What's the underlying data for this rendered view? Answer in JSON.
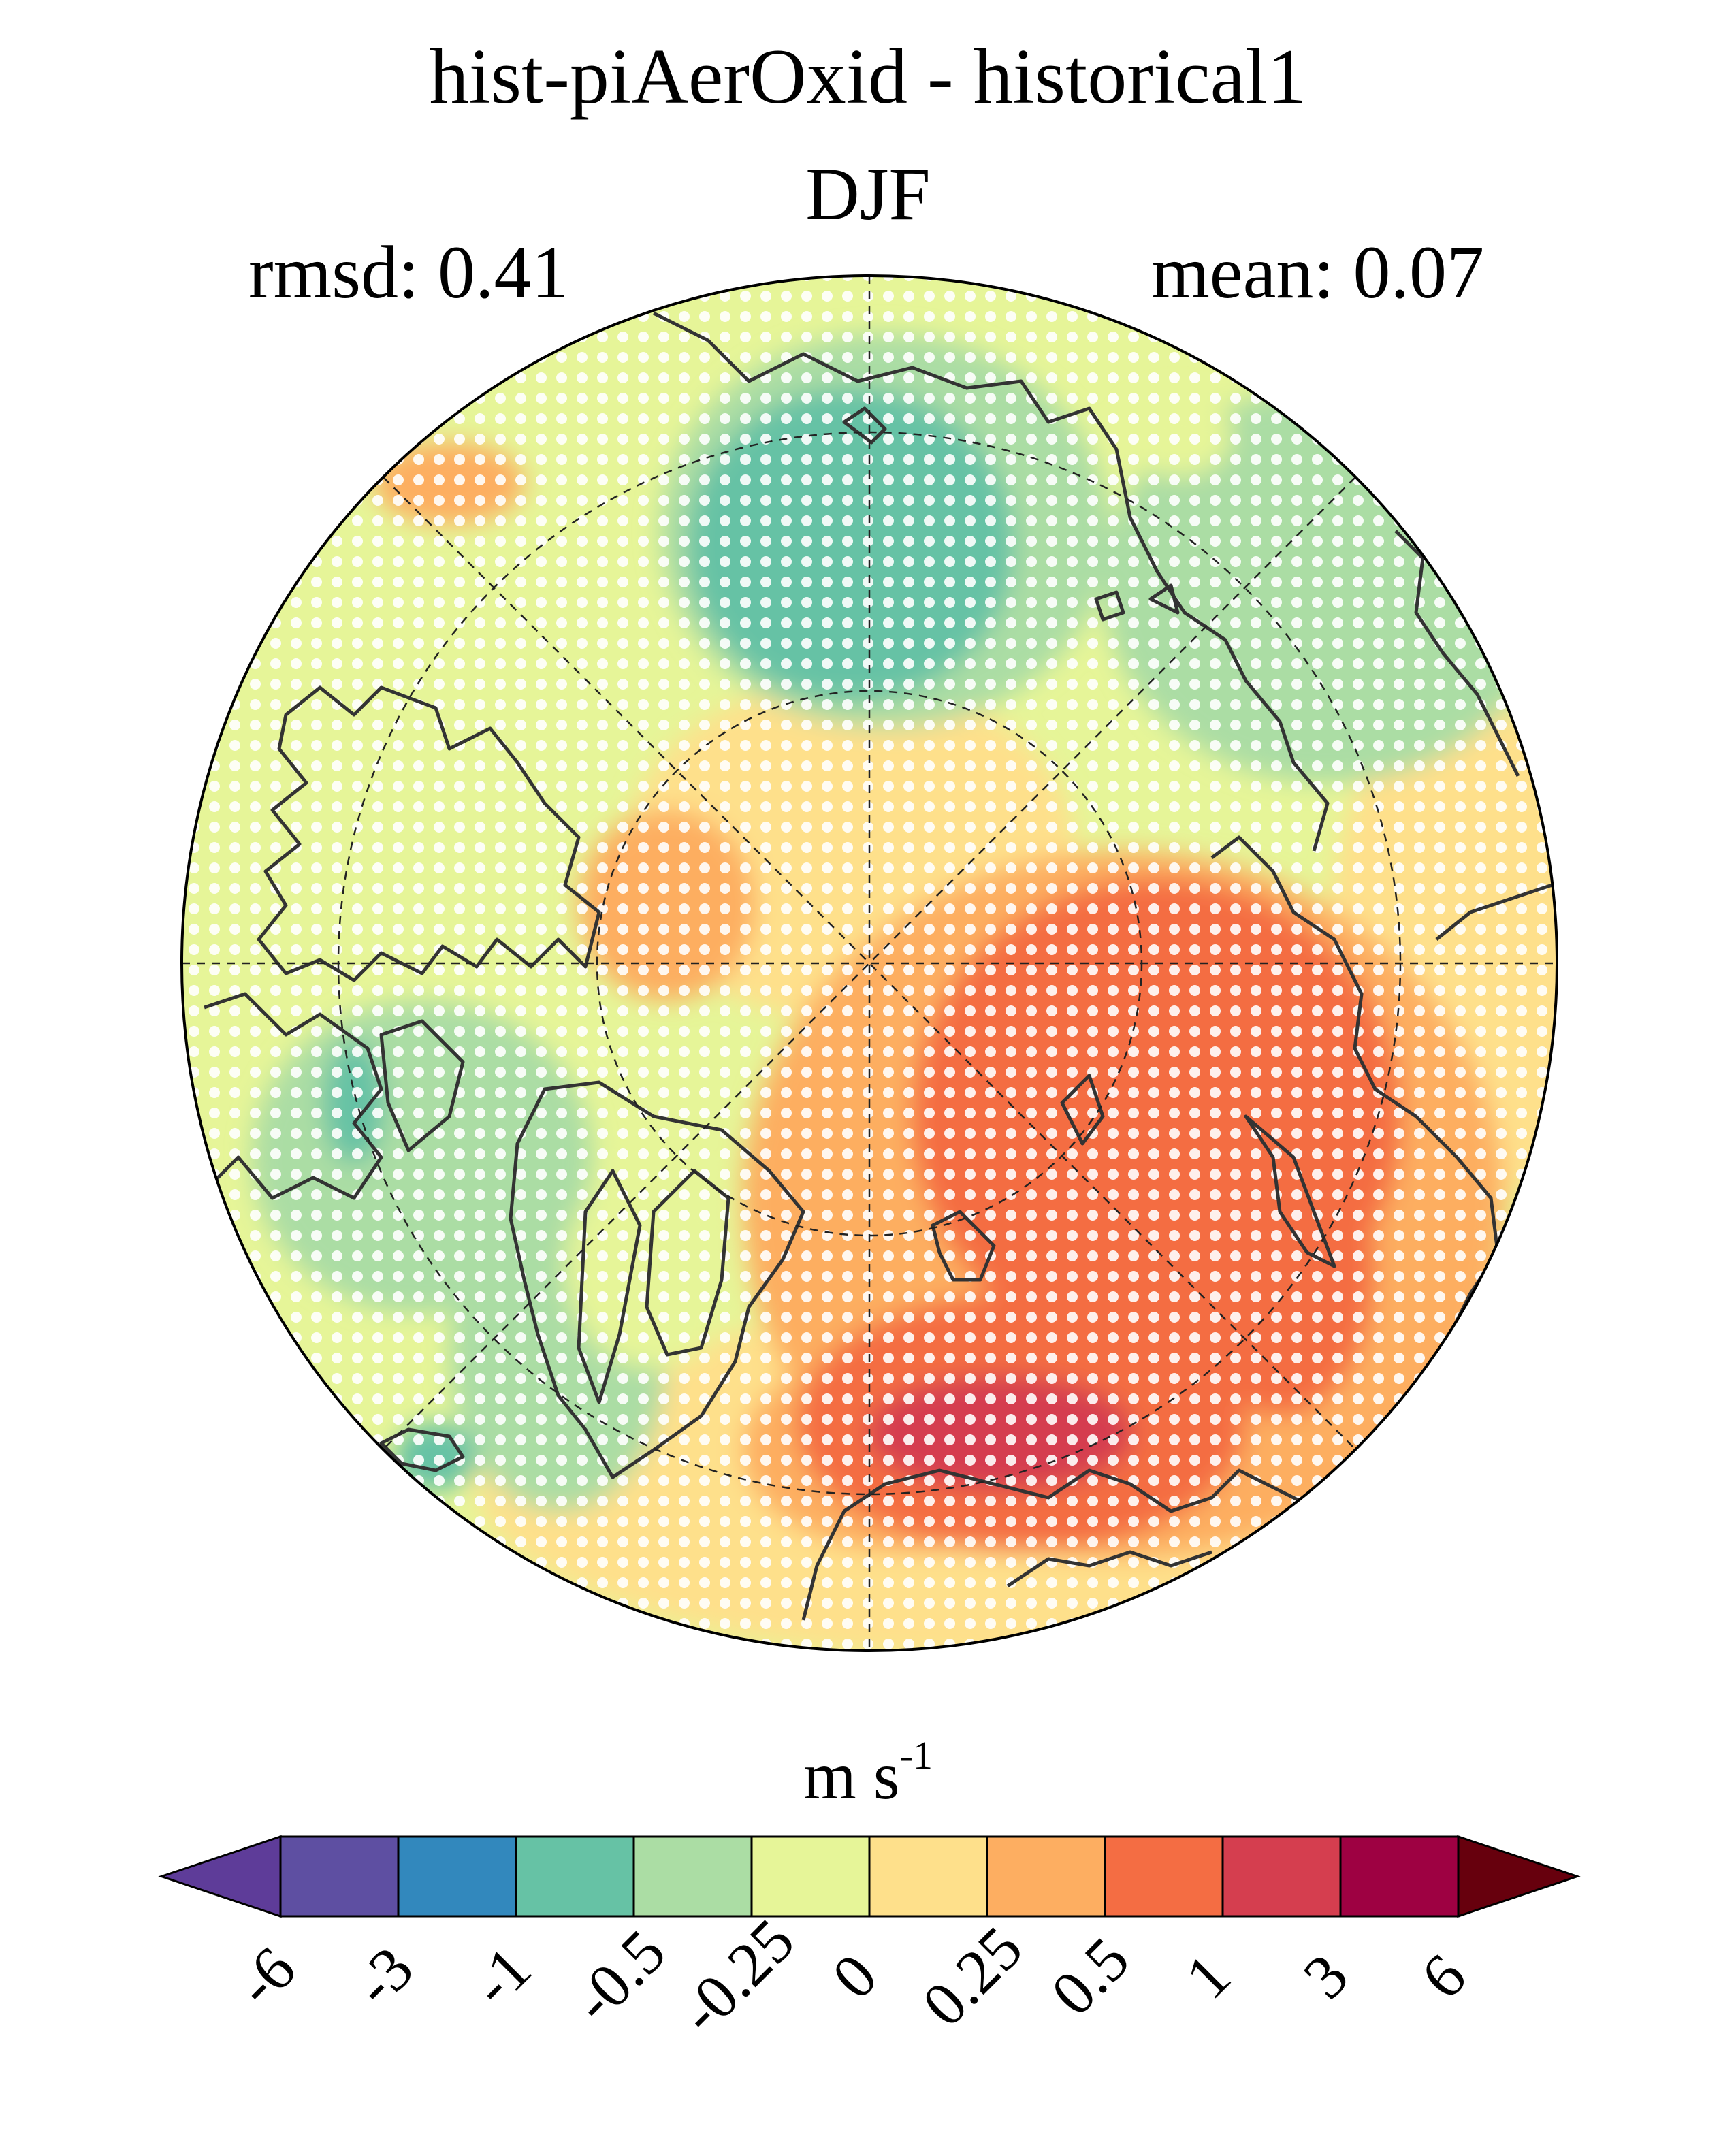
{
  "title": "hist-piAerOxid - historical1",
  "season": "DJF",
  "stats": {
    "rmsd": "rmsd: 0.41",
    "mean": "mean: 0.07"
  },
  "map": {
    "projection": "north-polar-stereographic",
    "coastlines": true,
    "graticule": "dashed",
    "stippling": "white dots"
  },
  "colorbar": {
    "units_base": "m s",
    "units_exp": "-1",
    "ticks": [
      "-6",
      "-3",
      "-1",
      "-0.5",
      "-0.25",
      "0",
      "0.25",
      "0.5",
      "1",
      "3",
      "6"
    ],
    "colors": [
      "#5e3c99",
      "#5e4fa2",
      "#3288bd",
      "#66c2a5",
      "#abdda4",
      "#e6f598",
      "#fee08b",
      "#fdae61",
      "#f46d43",
      "#d53e4f",
      "#9e0142",
      "#67000d"
    ]
  },
  "colors": {
    "neg_strong": "#66c2a5",
    "neg_weak": "#abdda4",
    "near_zero_neg": "#e6f598",
    "near_zero_pos": "#fee08b",
    "pos_weak": "#fdae61",
    "pos_mid": "#f46d43",
    "pos_strong": "#d53e4f",
    "coast": "#333333"
  }
}
